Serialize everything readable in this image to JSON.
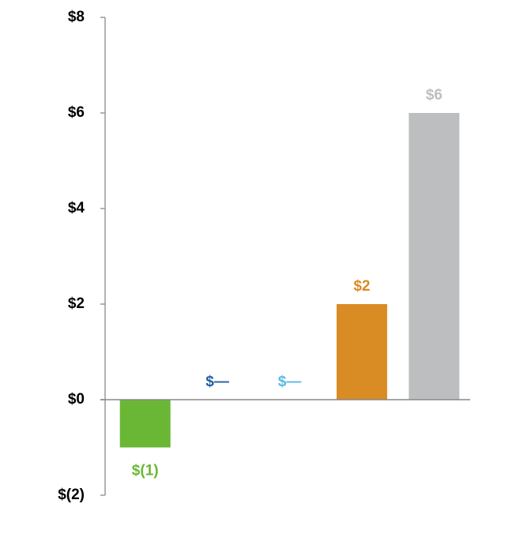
{
  "chart_data": {
    "type": "bar",
    "categories": [
      null,
      null,
      null,
      null,
      null
    ],
    "values": [
      -1,
      0,
      0,
      2,
      6
    ],
    "value_labels": [
      "$(1)",
      "$—",
      "$—",
      "$2",
      "$6"
    ],
    "colors": [
      "#6ab735",
      "#1f5fa0",
      "#5bb8e6",
      "#d98b24",
      "#bdbec0"
    ],
    "ylim": [
      -2,
      8
    ],
    "yticks": [
      {
        "value": -2,
        "label": "$(2)"
      },
      {
        "value": 0,
        "label": "$0"
      },
      {
        "value": 2,
        "label": "$2"
      },
      {
        "value": 4,
        "label": "$4"
      },
      {
        "value": 6,
        "label": "$6"
      },
      {
        "value": 8,
        "label": "$8"
      }
    ],
    "grid": false
  }
}
